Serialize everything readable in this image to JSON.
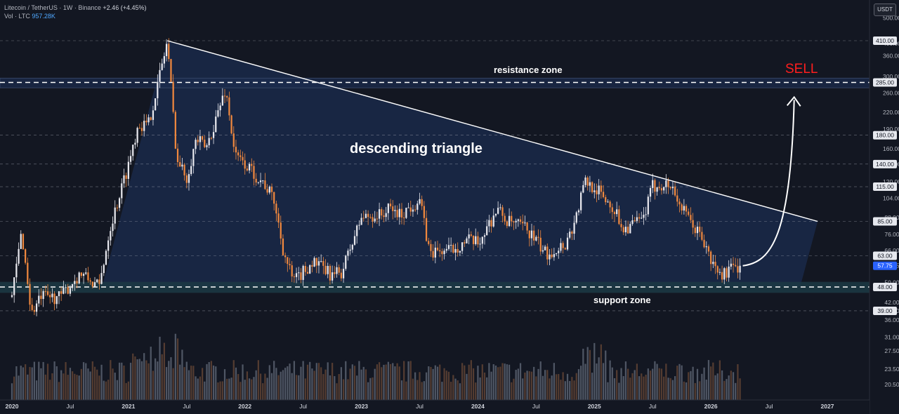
{
  "header": {
    "symbol": "Litecoin / TetherUS · 1W · Binance",
    "change": "+2.46 (+4.45%)",
    "vol_label": "Vol · LTC",
    "vol_value": "957.28K"
  },
  "currency_button": "USDT",
  "chart_data": {
    "type": "candlestick",
    "price_scale": "log",
    "y_ticks": [
      "500.00",
      "400.00",
      "360.00",
      "300.00",
      "260.00",
      "220.00",
      "190.00",
      "160.00",
      "140.00",
      "120.00",
      "104.00",
      "88.00",
      "76.00",
      "66.00",
      "57.75",
      "50.00",
      "42.00",
      "39.00",
      "36.00",
      "31.00",
      "27.50",
      "23.50",
      "20.50"
    ],
    "y_tick_values": [
      500,
      400,
      360,
      300,
      260,
      220,
      190,
      160,
      140,
      120,
      104,
      88,
      76,
      66,
      57.75,
      50,
      42,
      39,
      36,
      31,
      27.5,
      23.5,
      20.5
    ],
    "badge_values": [
      "410.00",
      "285.00",
      "180.00",
      "140.00",
      "115.00",
      "85.00",
      "63.00",
      "48.00",
      "39.00"
    ],
    "current_price": "57.75",
    "x_ticks": [
      "2020",
      "Jul",
      "2021",
      "Jul",
      "2022",
      "Jul",
      "2023",
      "Jul",
      "2024",
      "Jul",
      "2025",
      "Jul",
      "2026",
      "Jul",
      "2027"
    ],
    "x_tick_dates": [
      "2020-01",
      "2020-07",
      "2021-01",
      "2021-07",
      "2022-01",
      "2022-07",
      "2023-01",
      "2023-07",
      "2024-01",
      "2024-07",
      "2025-01",
      "2025-07",
      "2026-01",
      "2026-07",
      "2027-01"
    ],
    "price_path": [
      [
        "2020-01",
        44
      ],
      [
        "2020-02",
        78
      ],
      [
        "2020-03",
        38
      ],
      [
        "2020-04",
        44
      ],
      [
        "2020-06",
        44
      ],
      [
        "2020-08",
        54
      ],
      [
        "2020-10",
        48
      ],
      [
        "2020-11",
        78
      ],
      [
        "2021-01",
        140
      ],
      [
        "2021-02",
        200
      ],
      [
        "2021-03",
        195
      ],
      [
        "2021-04",
        280
      ],
      [
        "2021-05",
        410
      ],
      [
        "2021-06",
        145
      ],
      [
        "2021-07",
        125
      ],
      [
        "2021-08",
        175
      ],
      [
        "2021-09",
        160
      ],
      [
        "2021-11",
        270
      ],
      [
        "2021-12",
        150
      ],
      [
        "2022-01",
        140
      ],
      [
        "2022-03",
        118
      ],
      [
        "2022-04",
        102
      ],
      [
        "2022-05",
        65
      ],
      [
        "2022-06",
        50
      ],
      [
        "2022-08",
        60
      ],
      [
        "2022-10",
        53
      ],
      [
        "2022-11",
        55
      ],
      [
        "2023-01",
        88
      ],
      [
        "2023-03",
        90
      ],
      [
        "2023-04",
        95
      ],
      [
        "2023-05",
        90
      ],
      [
        "2023-07",
        103
      ],
      [
        "2023-08",
        65
      ],
      [
        "2023-10",
        66
      ],
      [
        "2023-12",
        72
      ],
      [
        "2024-01",
        70
      ],
      [
        "2024-03",
        95
      ],
      [
        "2024-04",
        85
      ],
      [
        "2024-06",
        80
      ],
      [
        "2024-08",
        64
      ],
      [
        "2024-10",
        70
      ],
      [
        "2024-11",
        85
      ],
      [
        "2024-12",
        120
      ],
      [
        "2025-01",
        115
      ],
      [
        "2025-03",
        95
      ],
      [
        "2025-04",
        80
      ],
      [
        "2025-06",
        86
      ],
      [
        "2025-07",
        115
      ],
      [
        "2025-08",
        118
      ],
      [
        "2025-09",
        115
      ],
      [
        "2025-10",
        95
      ],
      [
        "2025-11",
        83
      ],
      [
        "2025-12",
        75
      ],
      [
        "2026-01",
        60
      ],
      [
        "2026-02",
        53
      ],
      [
        "2026-03",
        56
      ],
      [
        "2026-04",
        57.75
      ]
    ],
    "volume_description": "weekly volume histogram"
  },
  "annotations": {
    "resistance_label": "resistance zone",
    "support_label": "support zone",
    "pattern_label": "descending triangle",
    "signal_label": "SELL",
    "resistance_price": 285,
    "support_price": 48,
    "triangle_top_points": [
      [
        "2021-05",
        410
      ],
      [
        "2026-12",
        85
      ]
    ],
    "triangle_bottom_points": [
      [
        "2020-11",
        48
      ],
      [
        "2026-12",
        48
      ]
    ],
    "projection": [
      [
        "2026-04",
        57.75
      ],
      [
        "2026-09",
        270
      ]
    ]
  },
  "colors": {
    "background": "#131722",
    "bull": "#e8e8ee",
    "bear": "#f0883e",
    "triangle_fill": "#1b2c4f",
    "support_fill": "#1c3a44",
    "sell": "#ff1e1e",
    "grid_dash": "#b8bcc8",
    "current_price_badge": "#2962ff"
  }
}
